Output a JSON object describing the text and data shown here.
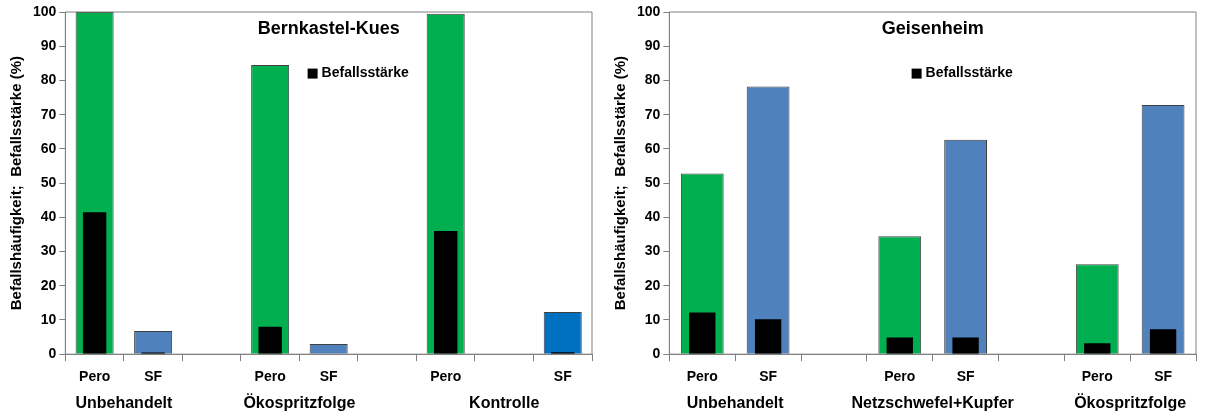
{
  "chart_data": [
    {
      "type": "bar",
      "title": "Bernkastel-Kues",
      "ylabel": "Befallshäufigkeit;  Befallsstärke (%)",
      "categories": [
        "Pero",
        "SF",
        null,
        "Pero",
        "SF",
        null,
        "Pero",
        null,
        "SF"
      ],
      "series": [
        {
          "colors": [
            "#00b050",
            "#4f81bd",
            null,
            "#00b050",
            "#4f81bd",
            null,
            "#00b050",
            null,
            "#0070c0"
          ],
          "values": [
            100,
            6.8,
            null,
            84.5,
            3.0,
            null,
            99.5,
            null,
            12.3
          ]
        },
        {
          "name": "Befallsstärke",
          "color": "#000000",
          "values": [
            41.5,
            0.5,
            null,
            8.0,
            null,
            null,
            36.0,
            null,
            0.6
          ]
        }
      ],
      "annotations": [
        "Unbehandelt",
        "Ökospritzfolge",
        "Kontrolle"
      ],
      "ylim": [
        0,
        100
      ],
      "yticks": [
        0,
        10,
        20,
        30,
        40,
        50,
        60,
        70,
        80,
        90,
        100
      ],
      "grid": false,
      "legend": "top right"
    },
    {
      "type": "bar",
      "title": "Geisenheim",
      "ylabel": "Befallshäufigkeit;  Befallsstärke (%)",
      "categories": [
        "Pero",
        "SF",
        null,
        "Pero",
        "SF",
        null,
        "Pero",
        "SF"
      ],
      "series": [
        {
          "colors": [
            "#00b050",
            "#4f81bd",
            null,
            "#00b050",
            "#4f81bd",
            null,
            "#00b050",
            "#4f81bd"
          ],
          "values": [
            52.8,
            78.2,
            null,
            34.5,
            62.7,
            null,
            26.3,
            72.8
          ]
        },
        {
          "name": "Befallsstärke",
          "color": "#000000",
          "values": [
            12.2,
            10.2,
            null,
            4.9,
            4.9,
            null,
            3.2,
            7.3
          ]
        }
      ],
      "annotations": [
        "Unbehandelt",
        "Netzschwefel+Kupfer",
        "Ökospritzfolge"
      ],
      "ylim": [
        0,
        100
      ],
      "yticks": [
        0,
        10,
        20,
        30,
        40,
        50,
        60,
        70,
        80,
        90,
        100
      ],
      "grid": false,
      "legend": "top right"
    }
  ]
}
